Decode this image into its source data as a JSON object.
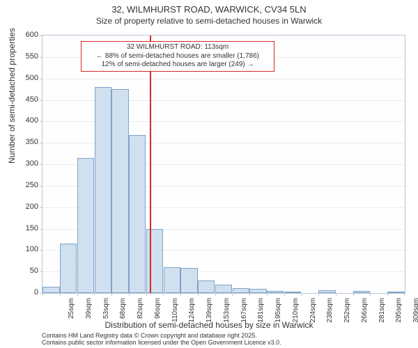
{
  "title": "32, WILMHURST ROAD, WARWICK, CV34 5LN",
  "subtitle": "Size of property relative to semi-detached houses in Warwick",
  "yaxis": {
    "title": "Number of semi-detached properties",
    "min": 0,
    "max": 600,
    "step": 50,
    "ticks": [
      0,
      50,
      100,
      150,
      200,
      250,
      300,
      350,
      400,
      450,
      500,
      550,
      600
    ]
  },
  "xaxis": {
    "title": "Distribution of semi-detached houses by size in Warwick",
    "labels": [
      "25sqm",
      "39sqm",
      "53sqm",
      "68sqm",
      "82sqm",
      "96sqm",
      "110sqm",
      "124sqm",
      "139sqm",
      "153sqm",
      "167sqm",
      "181sqm",
      "195sqm",
      "210sqm",
      "224sqm",
      "238sqm",
      "252sqm",
      "266sqm",
      "281sqm",
      "295sqm",
      "309sqm"
    ]
  },
  "chart": {
    "type": "histogram",
    "bar_fill": "#d1e0ef",
    "bar_stroke": "#7ea3c9",
    "background": "#fefefe",
    "grid_color": "#e6ecf2",
    "border_color": "#b8c6d6",
    "values": [
      15,
      115,
      315,
      480,
      475,
      368,
      150,
      60,
      58,
      30,
      20,
      12,
      10,
      5,
      3,
      0,
      6,
      0,
      5,
      0,
      2
    ]
  },
  "reference": {
    "color": "#d62728",
    "x_label_index": 6,
    "callout": {
      "line1": "32 WILMHURST ROAD: 113sqm",
      "line2": "← 88% of semi-detached houses are smaller (1,786)",
      "line3": "12% of semi-detached houses are larger (249) →"
    }
  },
  "credits": {
    "line1": "Contains HM Land Registry data © Crown copyright and database right 2025.",
    "line2": "Contains public sector information licensed under the Open Government Licence v3.0."
  }
}
